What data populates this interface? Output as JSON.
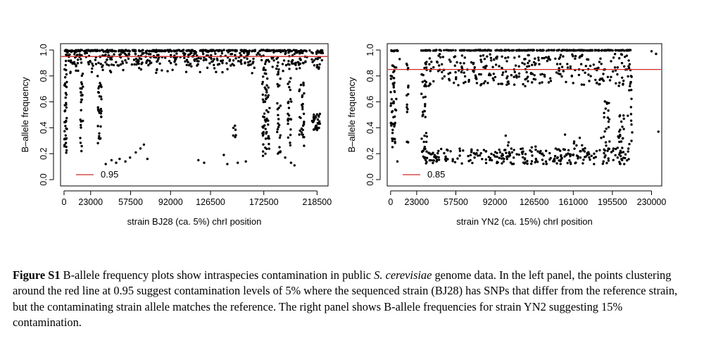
{
  "panels": [
    {
      "ylabel": "B–allele frequency",
      "xlabel": "strain BJ28 (ca. 5%) chrI position",
      "legend_label": "0.95"
    },
    {
      "ylabel": "B–allele frequency",
      "xlabel": "strain YN2 (ca. 15%) chrI position",
      "legend_label": "0.85"
    }
  ],
  "caption": {
    "label": "Figure S1",
    "text_before": " B-allele frequency plots show intraspecies contamination in public ",
    "species": "S. cerevisiae",
    "text_after": " genome data. In the left panel, the points clustering around the red line at 0.95 suggest contamination levels of 5% where the sequenced strain (BJ28) has SNPs that differ from the reference strain, but the contaminating strain allele matches the reference. The right panel shows B-allele frequencies for strain YN2 suggesting 15% contamination."
  },
  "colors": {
    "points": "#000000",
    "reference_line": "#d42a2a",
    "axes": "#000000"
  },
  "chart_data": [
    {
      "type": "scatter",
      "xlabel": "strain BJ28 (ca. 5%) chrI position",
      "ylabel": "B–allele frequency",
      "xlim": [
        -3000,
        228000
      ],
      "ylim": [
        0.0,
        1.0
      ],
      "xticks": [
        0,
        23000,
        57500,
        92000,
        126500,
        172500,
        218500
      ],
      "yticks": [
        0.0,
        0.2,
        0.4,
        0.6,
        0.8,
        1.0
      ],
      "reference_line_y": 0.95,
      "legend": {
        "position": "bottom-left",
        "entries": [
          "0.95"
        ]
      },
      "grid": false,
      "seed": 7,
      "clusters": [
        {
          "x": [
            0,
            210000
          ],
          "y": [
            0.99,
            1.0
          ],
          "n": 300
        },
        {
          "x": [
            0,
            210000
          ],
          "y": [
            0.88,
            0.99
          ],
          "n": 320
        },
        {
          "x": [
            0,
            210000
          ],
          "y": [
            0.82,
            0.88
          ],
          "n": 40
        },
        {
          "x": [
            200000,
            224000
          ],
          "y": [
            0.97,
            1.0
          ],
          "n": 25
        },
        {
          "x": [
            214000,
            223000
          ],
          "y": [
            0.85,
            0.97
          ],
          "n": 15
        },
        {
          "x": [
            300,
            2500
          ],
          "y": [
            0.15,
            0.95
          ],
          "n": 40
        },
        {
          "x": [
            14000,
            16500
          ],
          "y": [
            0.2,
            0.9
          ],
          "n": 25
        },
        {
          "x": [
            29000,
            32500
          ],
          "y": [
            0.25,
            0.8
          ],
          "n": 30
        },
        {
          "x": [
            171000,
            177500
          ],
          "y": [
            0.18,
            0.85
          ],
          "n": 60
        },
        {
          "x": [
            184000,
            187000
          ],
          "y": [
            0.2,
            0.85
          ],
          "n": 25
        },
        {
          "x": [
            193000,
            196500
          ],
          "y": [
            0.25,
            0.8
          ],
          "n": 25
        },
        {
          "x": [
            203000,
            208000
          ],
          "y": [
            0.25,
            0.75
          ],
          "n": 30
        },
        {
          "x": [
            214000,
            221000
          ],
          "y": [
            0.38,
            0.52
          ],
          "n": 30
        },
        {
          "x": [
            146000,
            148500
          ],
          "y": [
            0.32,
            0.48
          ],
          "n": 6
        }
      ],
      "points": [
        [
          36000,
          0.12
        ],
        [
          41000,
          0.15
        ],
        [
          45000,
          0.13
        ],
        [
          48000,
          0.16
        ],
        [
          53000,
          0.14
        ],
        [
          57000,
          0.17
        ],
        [
          62000,
          0.21
        ],
        [
          66000,
          0.24
        ],
        [
          69000,
          0.27
        ],
        [
          72000,
          0.16
        ],
        [
          116000,
          0.15
        ],
        [
          121000,
          0.13
        ],
        [
          138000,
          0.19
        ],
        [
          141000,
          0.12
        ],
        [
          150000,
          0.13
        ],
        [
          157000,
          0.14
        ],
        [
          196000,
          0.13
        ],
        [
          199000,
          0.11
        ],
        [
          191000,
          0.17
        ]
      ]
    },
    {
      "type": "scatter",
      "xlabel": "strain YN2 (ca. 15%) chrI position",
      "ylabel": "B–allele frequency",
      "xlim": [
        -3000,
        239000
      ],
      "ylim": [
        0.0,
        1.0
      ],
      "xticks": [
        0,
        23000,
        57500,
        92000,
        126500,
        161000,
        195500,
        230000
      ],
      "yticks": [
        0.0,
        0.2,
        0.4,
        0.6,
        0.8,
        1.0
      ],
      "reference_line_y": 0.85,
      "legend": {
        "position": "bottom-left",
        "entries": [
          "0.85"
        ]
      },
      "grid": false,
      "seed": 11,
      "clusters": [
        {
          "x": [
            0,
            8000
          ],
          "y": [
            0.99,
            1.0
          ],
          "n": 10
        },
        {
          "x": [
            27000,
            212000
          ],
          "y": [
            0.995,
            1.0
          ],
          "n": 260
        },
        {
          "x": [
            27000,
            212000
          ],
          "y": [
            0.72,
            0.97
          ],
          "n": 300
        },
        {
          "x": [
            27000,
            210000
          ],
          "y": [
            0.12,
            0.24
          ],
          "n": 260
        },
        {
          "x": [
            27000,
            32000
          ],
          "y": [
            0.15,
            0.9
          ],
          "n": 30
        },
        {
          "x": [
            0,
            5000
          ],
          "y": [
            0.25,
            0.9
          ],
          "n": 50
        },
        {
          "x": [
            14000,
            16000
          ],
          "y": [
            0.2,
            0.9
          ],
          "n": 15
        },
        {
          "x": [
            188000,
            193000
          ],
          "y": [
            0.2,
            0.65
          ],
          "n": 20
        },
        {
          "x": [
            200000,
            206000
          ],
          "y": [
            0.15,
            0.5
          ],
          "n": 20
        },
        {
          "x": [
            209000,
            213000
          ],
          "y": [
            0.25,
            0.85
          ],
          "n": 15
        },
        {
          "x": [
            100000,
            200000
          ],
          "y": [
            0.24,
            0.35
          ],
          "n": 14
        }
      ],
      "points": [
        [
          230000,
          0.99
        ],
        [
          234000,
          0.97
        ],
        [
          236000,
          0.37
        ],
        [
          8000,
          0.93
        ],
        [
          6000,
          0.14
        ]
      ]
    }
  ]
}
